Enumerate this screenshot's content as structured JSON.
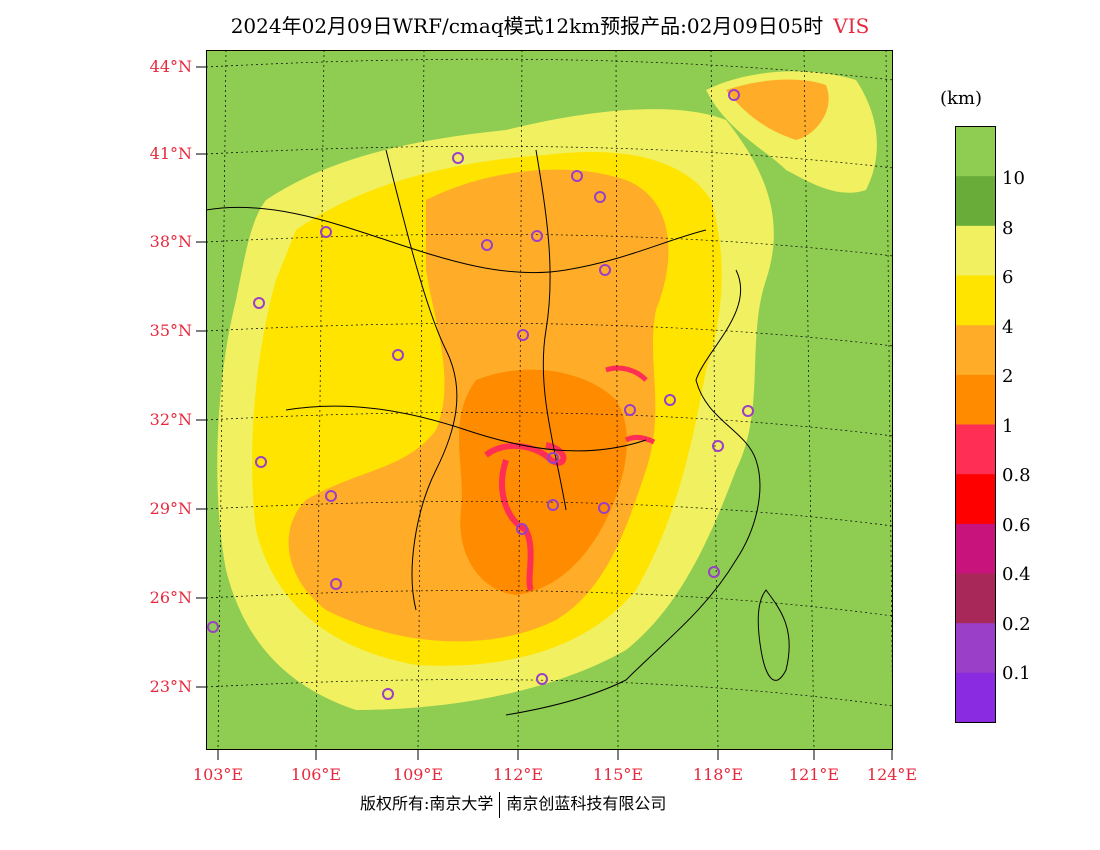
{
  "title": {
    "main": "2024年02月09日WRF/cmaq模式12km预报产品:02月09日05时",
    "variable": "VIS"
  },
  "lat_labels": [
    "44°N",
    "41°N",
    "38°N",
    "35°N",
    "32°N",
    "29°N",
    "26°N",
    "23°N"
  ],
  "lon_labels": [
    "103°E",
    "106°E",
    "109°E",
    "112°E",
    "115°E",
    "118°E",
    "121°E",
    "124°E"
  ],
  "colorbar": {
    "unit": "(km)",
    "labels": [
      "10",
      "8",
      "6",
      "4",
      "2",
      "1",
      "0.8",
      "0.6",
      "0.4",
      "0.2",
      "0.1"
    ],
    "colors": [
      "#8fcc52",
      "#6aac3a",
      "#f0f060",
      "#ffe400",
      "#ffad28",
      "#ff8c00",
      "#ff2e55",
      "#ff0000",
      "#c8137d",
      "#a8285a",
      "#9a3fc8",
      "#8a2be2"
    ]
  },
  "credit": {
    "left": "版权所有:南京大学",
    "right": "南京创蓝科技有限公司"
  }
}
